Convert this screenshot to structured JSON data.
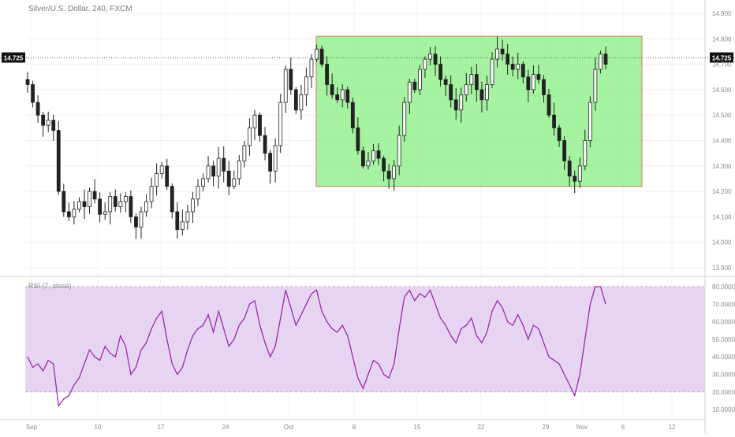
{
  "chart_data": [
    {
      "type": "candlestick",
      "title": "Silver/U.S. Dollar, 240, FXCM",
      "symbol": "Silver/U.S. Dollar",
      "interval": "240",
      "source": "FXCM",
      "y_ticks": [
        "14.900",
        "14.800",
        "14.700",
        "14.600",
        "14.500",
        "14.400",
        "14.300",
        "14.200",
        "14.100",
        "14.000",
        "13.900"
      ],
      "ylim": [
        13.88,
        14.92
      ],
      "x_ticks": [
        "Sep",
        "10",
        "17",
        "24",
        "Oct",
        "8",
        "15",
        "22",
        "29",
        "Nov",
        "6",
        "12"
      ],
      "last_price": "14.725",
      "last_price_value": 14.725,
      "price_series_approx": [
        14.62,
        14.55,
        14.5,
        14.46,
        14.48,
        14.44,
        14.2,
        14.12,
        14.1,
        14.13,
        14.16,
        14.14,
        14.2,
        14.17,
        14.11,
        14.12,
        14.18,
        14.14,
        14.16,
        14.18,
        14.1,
        14.06,
        14.12,
        14.16,
        14.22,
        14.27,
        14.3,
        14.22,
        14.12,
        14.05,
        14.08,
        14.12,
        14.17,
        14.22,
        14.25,
        14.3,
        14.26,
        14.33,
        14.28,
        14.22,
        14.25,
        14.32,
        14.38,
        14.45,
        14.5,
        14.42,
        14.35,
        14.28,
        14.38,
        14.55,
        14.68,
        14.6,
        14.52,
        14.58,
        14.65,
        14.72,
        14.76,
        14.7,
        14.62,
        14.58,
        14.56,
        14.6,
        14.55,
        14.45,
        14.36,
        14.3,
        14.32,
        14.36,
        14.33,
        14.28,
        14.25,
        14.3,
        14.42,
        14.55,
        14.63,
        14.6,
        14.68,
        14.72,
        14.74,
        14.7,
        14.64,
        14.62,
        14.56,
        14.52,
        14.58,
        14.62,
        14.66,
        14.6,
        14.56,
        14.62,
        14.72,
        14.76,
        14.74,
        14.7,
        14.68,
        14.7,
        14.65,
        14.6,
        14.66,
        14.64,
        14.58,
        14.5,
        14.45,
        14.4,
        14.32,
        14.26,
        14.24,
        14.3,
        14.4,
        14.55,
        14.68,
        14.74,
        14.7
      ],
      "annotation": {
        "shape": "rectangle",
        "price_top": 14.81,
        "price_bottom": 14.22
      }
    },
    {
      "type": "line",
      "indicator": "RSI (7, close)",
      "y_ticks": [
        "80.0000",
        "70.0000",
        "60.0000",
        "50.0000",
        "40.0000",
        "30.0000",
        "20.0000",
        "10.0000"
      ],
      "ylim": [
        5,
        82
      ],
      "band": {
        "upper": 80,
        "lower": 20
      },
      "values_approx": [
        40,
        34,
        36,
        32,
        38,
        36,
        12,
        16,
        18,
        24,
        28,
        36,
        44,
        40,
        38,
        46,
        42,
        40,
        52,
        46,
        30,
        34,
        44,
        48,
        56,
        62,
        66,
        50,
        36,
        30,
        34,
        44,
        52,
        56,
        58,
        64,
        54,
        66,
        56,
        46,
        50,
        58,
        62,
        70,
        72,
        58,
        48,
        40,
        46,
        62,
        78,
        68,
        58,
        64,
        70,
        76,
        78,
        66,
        60,
        56,
        54,
        58,
        52,
        40,
        28,
        22,
        30,
        38,
        36,
        30,
        28,
        36,
        56,
        74,
        78,
        72,
        76,
        74,
        78,
        70,
        62,
        58,
        52,
        48,
        56,
        58,
        62,
        52,
        48,
        54,
        66,
        72,
        68,
        60,
        58,
        64,
        58,
        50,
        58,
        56,
        48,
        40,
        38,
        36,
        30,
        24,
        18,
        30,
        50,
        70,
        80,
        80,
        70
      ]
    }
  ]
}
